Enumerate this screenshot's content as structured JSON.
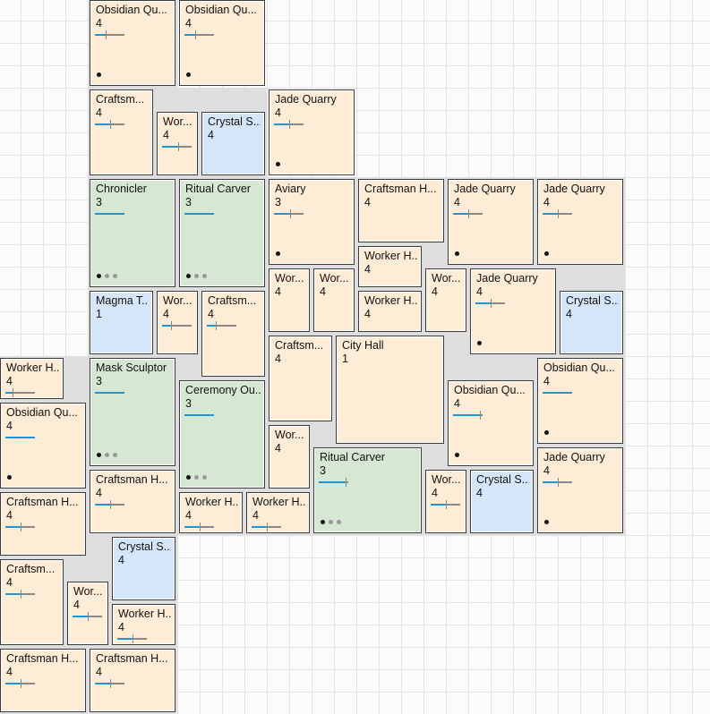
{
  "cards": [
    {
      "title": "Obsidian Qu...",
      "level": "4",
      "color": "orange",
      "progress": 0.35,
      "marker": true,
      "dots": [
        1
      ]
    },
    {
      "title": "Obsidian Qu...",
      "level": "4",
      "color": "orange",
      "progress": 0.35,
      "marker": true,
      "dots": [
        1
      ]
    },
    {
      "title": "Craftsm...",
      "level": "4",
      "color": "orange",
      "progress": 0.5,
      "marker": true,
      "dots": []
    },
    {
      "title": "Wor...",
      "level": "4",
      "color": "orange",
      "progress": 0.55,
      "marker": true,
      "dots": []
    },
    {
      "title": "Crystal S...",
      "level": "4",
      "color": "blue",
      "progress": null,
      "marker": false,
      "dots": []
    },
    {
      "title": "Jade Quarry",
      "level": "4",
      "color": "orange",
      "progress": 0.5,
      "marker": true,
      "dots": [
        1
      ]
    },
    {
      "title": "Chronicler",
      "level": "3",
      "color": "green",
      "progress": 1,
      "marker": false,
      "dots": [
        1,
        0,
        0
      ]
    },
    {
      "title": "Ritual Carver",
      "level": "3",
      "color": "green",
      "progress": 1,
      "marker": false,
      "dots": [
        1,
        0,
        0
      ]
    },
    {
      "title": "Aviary",
      "level": "3",
      "color": "orange",
      "progress": 0.55,
      "marker": true,
      "dots": [
        1
      ]
    },
    {
      "title": "Craftsman H...",
      "level": "4",
      "color": "orange",
      "progress": null,
      "marker": false,
      "dots": []
    },
    {
      "title": "Jade Quarry",
      "level": "4",
      "color": "orange",
      "progress": 0.5,
      "marker": true,
      "dots": [
        1
      ]
    },
    {
      "title": "Jade Quarry",
      "level": "4",
      "color": "orange",
      "progress": 0.5,
      "marker": true,
      "dots": [
        1
      ]
    },
    {
      "title": "Worker H...",
      "level": "4",
      "color": "orange",
      "progress": null,
      "marker": false,
      "dots": []
    },
    {
      "title": "Wor...",
      "level": "4",
      "color": "orange",
      "progress": null,
      "marker": false,
      "dots": []
    },
    {
      "title": "Wor...",
      "level": "4",
      "color": "orange",
      "progress": null,
      "marker": false,
      "dots": []
    },
    {
      "title": "Worker H...",
      "level": "4",
      "color": "orange",
      "progress": null,
      "marker": false,
      "dots": []
    },
    {
      "title": "Wor...",
      "level": "4",
      "color": "orange",
      "progress": null,
      "marker": false,
      "dots": []
    },
    {
      "title": "Jade Quarry",
      "level": "4",
      "color": "orange",
      "progress": 0.5,
      "marker": true,
      "dots": [
        1
      ]
    },
    {
      "title": "Crystal S...",
      "level": "4",
      "color": "blue",
      "progress": null,
      "marker": false,
      "dots": []
    },
    {
      "title": "Magma T...",
      "level": "1",
      "color": "blue",
      "progress": null,
      "marker": false,
      "dots": []
    },
    {
      "title": "Wor...",
      "level": "4",
      "color": "orange",
      "progress": 0.3,
      "marker": true,
      "dots": []
    },
    {
      "title": "Craftsm...",
      "level": "4",
      "color": "orange",
      "progress": 0.3,
      "marker": true,
      "dots": []
    },
    {
      "title": "Craftsm...",
      "level": "4",
      "color": "orange",
      "progress": null,
      "marker": false,
      "dots": []
    },
    {
      "title": "City Hall",
      "level": "1",
      "color": "orange",
      "progress": null,
      "marker": false,
      "dots": []
    },
    {
      "title": "Worker H...",
      "level": "4",
      "color": "orange",
      "progress": 0.25,
      "marker": true,
      "dots": []
    },
    {
      "title": "Mask Sculptor",
      "level": "3",
      "color": "green",
      "progress": 1,
      "marker": false,
      "dots": [
        1,
        0,
        0
      ]
    },
    {
      "title": "Obsidian Qu...",
      "level": "4",
      "color": "orange",
      "progress": 1,
      "marker": false,
      "dots": [
        1
      ]
    },
    {
      "title": "Ceremony Ou...",
      "level": "3",
      "color": "green",
      "progress": 1,
      "marker": false,
      "dots": [
        1,
        0,
        0
      ]
    },
    {
      "title": "Obsidian Qu...",
      "level": "4",
      "color": "orange",
      "progress": 1,
      "marker": false,
      "dots": [
        1
      ]
    },
    {
      "title": "Obsidian Qu...",
      "level": "4",
      "color": "orange",
      "progress": 0.9,
      "marker": true,
      "dots": [
        1
      ]
    },
    {
      "title": "Wor...",
      "level": "4",
      "color": "orange",
      "progress": null,
      "marker": false,
      "dots": []
    },
    {
      "title": "Ritual Carver",
      "level": "3",
      "color": "green",
      "progress": 0.9,
      "marker": true,
      "dots": [
        1,
        0,
        0
      ]
    },
    {
      "title": "Wor...",
      "level": "4",
      "color": "orange",
      "progress": 0.5,
      "marker": true,
      "dots": []
    },
    {
      "title": "Crystal S...",
      "level": "4",
      "color": "blue",
      "progress": null,
      "marker": false,
      "dots": []
    },
    {
      "title": "Jade Quarry",
      "level": "4",
      "color": "orange",
      "progress": 0.5,
      "marker": true,
      "dots": [
        1
      ]
    },
    {
      "title": "Craftsman H...",
      "level": "4",
      "color": "orange",
      "progress": 0.5,
      "marker": true,
      "dots": []
    },
    {
      "title": "Craftsman H...",
      "level": "4",
      "color": "orange",
      "progress": 0.5,
      "marker": true,
      "dots": []
    },
    {
      "title": "Worker H...",
      "level": "4",
      "color": "orange",
      "progress": 0.5,
      "marker": true,
      "dots": []
    },
    {
      "title": "Worker H...",
      "level": "4",
      "color": "orange",
      "progress": 0.5,
      "marker": true,
      "dots": []
    },
    {
      "title": "Crystal S...",
      "level": "4",
      "color": "blue",
      "progress": null,
      "marker": false,
      "dots": []
    },
    {
      "title": "Craftsm...",
      "level": "4",
      "color": "orange",
      "progress": 0.5,
      "marker": true,
      "dots": []
    },
    {
      "title": "Wor...",
      "level": "4",
      "color": "orange",
      "progress": 0.5,
      "marker": true,
      "dots": []
    },
    {
      "title": "Worker H...",
      "level": "4",
      "color": "orange",
      "progress": 0.5,
      "marker": true,
      "dots": []
    },
    {
      "title": "Craftsman H...",
      "level": "4",
      "color": "orange",
      "progress": 0.5,
      "marker": true,
      "dots": []
    },
    {
      "title": "Craftsman H...",
      "level": "4",
      "color": "orange",
      "progress": 0.5,
      "marker": true,
      "dots": []
    }
  ],
  "colors": {
    "orange": "#feecd6",
    "blue": "#d5e6fb",
    "green": "#d6e7d3",
    "bar": "#1f96d8",
    "bar_rest": "#8a8a8a",
    "border": "#3c3c3c"
  }
}
